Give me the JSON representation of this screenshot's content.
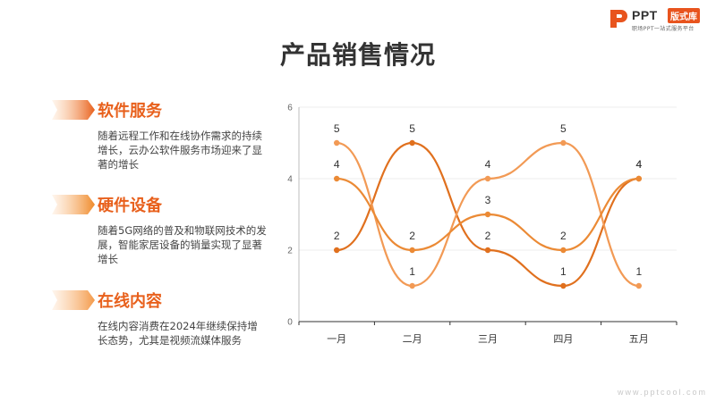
{
  "logo": {
    "text": "PPT",
    "badge": "版式库",
    "subtitle": "职场PPT一站式服务平台"
  },
  "page_title": "产品销售情况",
  "items": [
    {
      "title": "软件服务",
      "desc": "随着远程工作和在线协作需求的持续增长，云办公软件服务市场迎来了显著的增长",
      "color": "#e8601c"
    },
    {
      "title": "硬件设备",
      "desc": "随着5G网络的普及和物联网技术的发展，智能家居设备的销量实现了显著增长",
      "color": "#ef8a2a"
    },
    {
      "title": "在线内容",
      "desc": "在线内容消费在2024年继续保持增长态势，尤其是视频流媒体服务",
      "color": "#f39a4a"
    }
  ],
  "chart_data": {
    "type": "line",
    "smooth": true,
    "categories": [
      "一月",
      "二月",
      "三月",
      "四月",
      "五月"
    ],
    "ylim": [
      0,
      6
    ],
    "yticks": [
      0,
      2,
      4,
      6
    ],
    "grid": true,
    "series": [
      {
        "values": [
          2,
          5,
          2,
          1,
          4
        ],
        "color": "#e0701e"
      },
      {
        "values": [
          5,
          1,
          4,
          5,
          1
        ],
        "color": "#f29a55"
      },
      {
        "values": [
          4,
          2,
          3,
          2,
          4
        ],
        "color": "#eb8a35"
      }
    ]
  },
  "watermark": "www.pptcool.com"
}
